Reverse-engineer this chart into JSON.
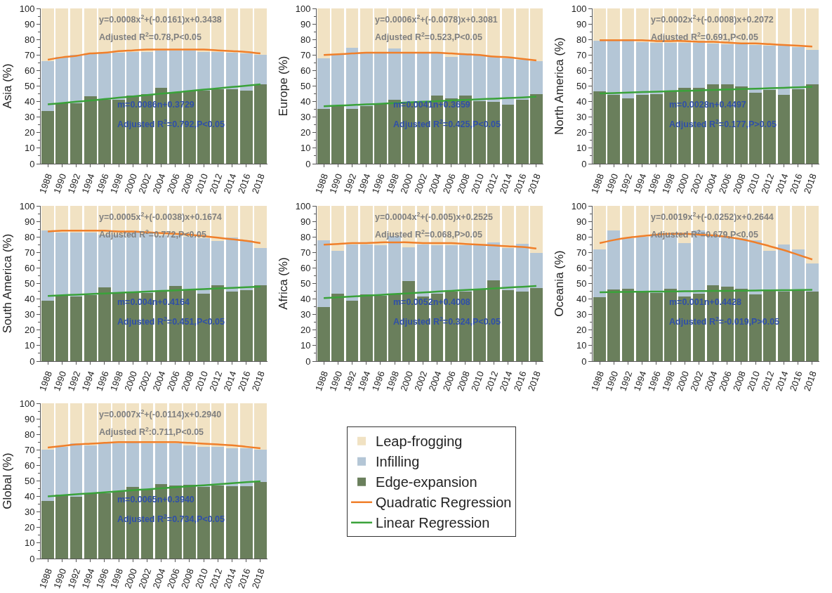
{
  "chart_data": [
    {
      "type": "bar",
      "stacked": true,
      "ylabel": "Asia (%)",
      "categories": [
        "1988",
        "1990",
        "1992",
        "1994",
        "1996",
        "1998",
        "2000",
        "2002",
        "2004",
        "2006",
        "2008",
        "2010",
        "2012",
        "2014",
        "2016",
        "2018"
      ],
      "ylim": [
        0,
        100
      ],
      "yticks": [
        0,
        10,
        20,
        30,
        40,
        50,
        60,
        70,
        80,
        90,
        100
      ],
      "grid": false,
      "legend": false,
      "annotations": [
        "y=0.0008x$^{2}$+(-0.0161)x+0.3438",
        "Adjusted R$^{2}$=0.78,P<0.05",
        "m=0.0086n+0.3729",
        "Adjusted R$^{2}$=0.792,P<0.05"
      ],
      "series": [
        {
          "color": "#6a7f5c",
          "values": [
            34,
            39,
            39,
            43.5,
            41,
            41,
            44,
            45,
            49,
            46,
            47,
            47,
            48,
            48,
            47,
            51
          ]
        },
        {
          "color": "#b4c6d6",
          "values": [
            32,
            30,
            31,
            27.5,
            30,
            30.5,
            28,
            27,
            24,
            27,
            26,
            25,
            24,
            23.5,
            24,
            19
          ]
        },
        {
          "color": "#f1e2c3",
          "values": [
            34,
            31,
            30,
            29,
            29,
            28.5,
            28,
            28,
            27,
            27,
            27,
            28,
            28,
            28.5,
            29,
            30
          ]
        },
        {
          "type": "line",
          "color": "#f07f2a",
          "values": [
            67,
            68.5,
            69.5,
            71,
            71.5,
            72.5,
            73,
            73.5,
            73.5,
            73.5,
            73.5,
            73.5,
            73,
            72.5,
            72,
            71
          ]
        },
        {
          "type": "line",
          "color": "#3aa23a",
          "values": [
            38.2,
            39,
            39.9,
            40.7,
            41.6,
            42.5,
            43.3,
            44.2,
            45.1,
            45.9,
            46.8,
            47.7,
            48.5,
            49.4,
            50.2,
            51.1
          ]
        }
      ]
    },
    {
      "type": "bar",
      "stacked": true,
      "ylabel": "Europe (%)",
      "categories": [
        "1988",
        "1990",
        "1992",
        "1994",
        "1996",
        "1998",
        "2000",
        "2002",
        "2004",
        "2006",
        "2008",
        "2010",
        "2012",
        "2014",
        "2016",
        "2018"
      ],
      "ylim": [
        0,
        100
      ],
      "yticks": [
        0,
        10,
        20,
        30,
        40,
        50,
        60,
        70,
        80,
        90,
        100
      ],
      "grid": false,
      "legend": false,
      "annotations": [
        "y=0.0006x$^{2}$+(-0.0078)x+0.3081",
        "Adjusted R$^{2}$=0.523,P<0.05",
        "m=0.0041n+0.3659",
        "Adjusted R$^{2}$=0.425,P<0.05"
      ],
      "series": [
        {
          "color": "#6a7f5c",
          "values": [
            35.5,
            37,
            35.5,
            37,
            39,
            41,
            40,
            40,
            44,
            42,
            44,
            40.5,
            40,
            38,
            41,
            45
          ]
        },
        {
          "color": "#b4c6d6",
          "values": [
            32.5,
            33,
            39,
            34,
            33,
            33,
            31,
            31,
            27,
            27,
            27,
            29.5,
            29,
            30,
            26,
            21
          ]
        },
        {
          "color": "#f1e2c3",
          "values": [
            32,
            30,
            25.5,
            29,
            28,
            26,
            29,
            29,
            29,
            31,
            29,
            30,
            31,
            32,
            33,
            34
          ]
        },
        {
          "type": "line",
          "color": "#f07f2a",
          "values": [
            70,
            70.5,
            71,
            71.5,
            71.5,
            71.5,
            71.5,
            71.5,
            71.5,
            71,
            70.5,
            70,
            69,
            68.5,
            67.5,
            66.5
          ]
        },
        {
          "type": "line",
          "color": "#3aa23a",
          "values": [
            37,
            37.4,
            37.8,
            38.2,
            38.6,
            39,
            39.5,
            39.9,
            40.3,
            40.7,
            41.1,
            41.5,
            41.9,
            42.3,
            42.7,
            43.2
          ]
        }
      ]
    },
    {
      "type": "bar",
      "stacked": true,
      "ylabel": "North America (%)",
      "categories": [
        "1988",
        "1990",
        "1992",
        "1994",
        "1996",
        "1998",
        "2000",
        "2002",
        "2004",
        "2006",
        "2008",
        "2010",
        "2012",
        "2014",
        "2016",
        "2018"
      ],
      "ylim": [
        0,
        100
      ],
      "yticks": [
        0,
        10,
        20,
        30,
        40,
        50,
        60,
        70,
        80,
        90,
        100
      ],
      "grid": false,
      "legend": false,
      "annotations": [
        "y=0.0002x$^{2}$+(-0.0008)x+0.2072",
        "Adjusted R$^{2}$=0.691,P<0.05",
        "m=0.0028n+0.4497",
        "Adjusted R$^{2}$=0.177,P>0.05"
      ],
      "series": [
        {
          "color": "#6a7f5c",
          "values": [
            46.5,
            44.5,
            42,
            44.5,
            45,
            47,
            49,
            49,
            51,
            51,
            50,
            45.5,
            47.5,
            44.5,
            48,
            51
          ]
        },
        {
          "color": "#b4c6d6",
          "values": [
            32.5,
            34.5,
            37,
            34,
            33,
            31,
            29,
            29,
            26.5,
            26,
            27,
            31,
            28.5,
            31.5,
            27,
            22.5
          ]
        },
        {
          "color": "#f1e2c3",
          "values": [
            21,
            21,
            21,
            21.5,
            22,
            22,
            22,
            22,
            22.5,
            23,
            23,
            23.5,
            24,
            24,
            25,
            26.5
          ]
        },
        {
          "type": "line",
          "color": "#f07f2a",
          "values": [
            79.5,
            79.5,
            79.5,
            79.5,
            79,
            79,
            79,
            78.5,
            78.5,
            78,
            77.5,
            77.5,
            77,
            76.5,
            76,
            75.5
          ]
        },
        {
          "type": "line",
          "color": "#3aa23a",
          "values": [
            45.3,
            45.5,
            45.8,
            46.1,
            46.4,
            46.7,
            46.9,
            47.2,
            47.5,
            47.8,
            48.1,
            48.3,
            48.6,
            48.9,
            49.2,
            49.5
          ]
        }
      ]
    },
    {
      "type": "bar",
      "stacked": true,
      "ylabel": "South America (%)",
      "categories": [
        "1988",
        "1990",
        "1992",
        "1994",
        "1996",
        "1998",
        "2000",
        "2002",
        "2004",
        "2006",
        "2008",
        "2010",
        "2012",
        "2014",
        "2016",
        "2018"
      ],
      "ylim": [
        0,
        100
      ],
      "yticks": [
        0,
        10,
        20,
        30,
        40,
        50,
        60,
        70,
        80,
        90,
        100
      ],
      "grid": false,
      "legend": false,
      "annotations": [
        "y=0.0005x$^{2}$+(-0.0038)x+0.1674",
        "Adjusted R$^{2}$=0.772,P<0.05",
        "m=0.004n+0.4164",
        "Adjusted R$^{2}$=0.451,P<0.05"
      ],
      "series": [
        {
          "color": "#6a7f5c",
          "values": [
            39,
            42,
            41.5,
            42.5,
            47.5,
            44.5,
            45,
            44,
            45,
            48.5,
            46,
            43.5,
            49,
            45,
            45.5,
            49
          ]
        },
        {
          "color": "#b4c6d6",
          "values": [
            45,
            41,
            41.5,
            40.5,
            34,
            37,
            38,
            38,
            36,
            32.5,
            34,
            35.5,
            28.5,
            34.5,
            32.5,
            24
          ]
        },
        {
          "color": "#f1e2c3",
          "values": [
            16,
            17,
            17,
            17,
            18.5,
            18.5,
            17,
            18,
            19,
            19,
            20,
            21,
            22.5,
            20.5,
            22,
            27
          ]
        },
        {
          "type": "line",
          "color": "#f07f2a",
          "values": [
            83.5,
            84,
            84,
            84,
            84,
            83.5,
            83.5,
            83,
            82.5,
            82,
            81.5,
            80.5,
            79.5,
            78.5,
            77.5,
            76
          ]
        },
        {
          "type": "line",
          "color": "#3aa23a",
          "values": [
            42,
            42.4,
            42.8,
            43.2,
            43.6,
            44,
            44.4,
            44.8,
            45.2,
            45.6,
            46,
            46.4,
            46.8,
            47.2,
            47.6,
            48
          ]
        }
      ]
    },
    {
      "type": "bar",
      "stacked": true,
      "ylabel": "Africa (%)",
      "categories": [
        "1988",
        "1990",
        "1992",
        "1994",
        "1996",
        "1998",
        "2000",
        "2002",
        "2004",
        "2006",
        "2008",
        "2010",
        "2012",
        "2014",
        "2016",
        "2018"
      ],
      "ylim": [
        0,
        100
      ],
      "yticks": [
        0,
        10,
        20,
        30,
        40,
        50,
        60,
        70,
        80,
        90,
        100
      ],
      "grid": false,
      "legend": false,
      "annotations": [
        "y=0.0004x$^{2}$+(-0.005)x+0.2525",
        "Adjusted R$^{2}$=0.068,P>0.05",
        "m=0.0052n+0.4008",
        "Adjusted R$^{2}$=0.324,P<0.05"
      ],
      "series": [
        {
          "color": "#6a7f5c",
          "values": [
            35,
            43.5,
            39,
            43,
            42,
            43,
            51.5,
            41.5,
            43.5,
            45,
            45,
            46,
            52,
            45.5,
            45,
            47
          ]
        },
        {
          "color": "#b4c6d6",
          "values": [
            43,
            27.5,
            36,
            32,
            32.5,
            37.5,
            22,
            33.5,
            31,
            29.5,
            29.5,
            29,
            24.5,
            27.5,
            30.5,
            22.5
          ]
        },
        {
          "color": "#f1e2c3",
          "values": [
            22,
            29,
            25,
            25,
            25.5,
            19.5,
            26.5,
            25,
            25.5,
            25.5,
            25.5,
            25,
            23.5,
            27,
            24.5,
            30.5
          ]
        },
        {
          "type": "line",
          "color": "#f07f2a",
          "values": [
            75,
            75.5,
            76,
            76,
            76.5,
            76.5,
            76.5,
            76,
            76,
            76,
            75.5,
            75,
            74.5,
            74,
            73.5,
            72.5
          ]
        },
        {
          "type": "line",
          "color": "#3aa23a",
          "values": [
            40.6,
            41.1,
            41.6,
            42.2,
            42.7,
            43.2,
            43.7,
            44.2,
            44.8,
            45.3,
            45.8,
            46.3,
            46.8,
            47.4,
            47.9,
            48.4
          ]
        }
      ]
    },
    {
      "type": "bar",
      "stacked": true,
      "ylabel": "Oceania (%)",
      "categories": [
        "1988",
        "1990",
        "1992",
        "1994",
        "1996",
        "1998",
        "2000",
        "2002",
        "2004",
        "2006",
        "2008",
        "2010",
        "2012",
        "2014",
        "2016",
        "2018"
      ],
      "ylim": [
        0,
        100
      ],
      "yticks": [
        0,
        10,
        20,
        30,
        40,
        50,
        60,
        70,
        80,
        90,
        100
      ],
      "grid": false,
      "legend": false,
      "annotations": [
        "y=0.0019x$^{2}$+(-0.0252)x+0.2644",
        "Adjusted R$^{2}$=0.679,P<0.05",
        "m=0.001n+0.4428",
        "Adjusted R$^{2}$=-0.019,P>0.05"
      ],
      "series": [
        {
          "color": "#6a7f5c",
          "values": [
            41,
            46,
            46.5,
            45,
            44,
            46.5,
            41.5,
            43.5,
            49,
            48,
            46.5,
            43,
            45.5,
            45,
            46,
            45
          ]
        },
        {
          "color": "#b4c6d6",
          "values": [
            31,
            38,
            32.5,
            35,
            37,
            34.5,
            34.5,
            40.5,
            32,
            32,
            32.5,
            35,
            25.5,
            30,
            26,
            18
          ]
        },
        {
          "color": "#f1e2c3",
          "values": [
            28,
            16,
            21,
            20,
            19,
            19,
            24,
            16,
            19,
            20,
            21,
            22,
            29,
            25,
            28,
            37
          ]
        },
        {
          "type": "line",
          "color": "#f07f2a",
          "values": [
            76,
            78,
            79.5,
            80.5,
            81.5,
            82,
            82,
            81.5,
            81,
            80,
            78.5,
            76.5,
            74,
            71.5,
            68.5,
            65.5
          ]
        },
        {
          "type": "line",
          "color": "#3aa23a",
          "values": [
            44.4,
            44.5,
            44.6,
            44.7,
            44.8,
            44.9,
            45,
            45.1,
            45.2,
            45.3,
            45.4,
            45.5,
            45.6,
            45.7,
            45.8,
            45.9
          ]
        }
      ]
    },
    {
      "type": "bar",
      "stacked": true,
      "ylabel": "Global (%)",
      "categories": [
        "1988",
        "1990",
        "1992",
        "1994",
        "1996",
        "1998",
        "2000",
        "2002",
        "2004",
        "2006",
        "2008",
        "2010",
        "2012",
        "2014",
        "2016",
        "2018"
      ],
      "ylim": [
        0,
        100
      ],
      "yticks": [
        0,
        10,
        20,
        30,
        40,
        50,
        60,
        70,
        80,
        90,
        100
      ],
      "grid": false,
      "legend": "right",
      "annotations": [
        "y=0.0007x$^{2}$+(-0.0114)x+0.2940",
        "Adjusted R$^{2}$:0.711,P<0.05",
        "m=0.0065n+0.3940",
        "Adjusted R$^{2}$=0.734,P<0.05"
      ],
      "series": [
        {
          "name": "Edge-expansion",
          "color": "#6a7f5c",
          "values": [
            37,
            41,
            40,
            42,
            42,
            43,
            46,
            45,
            48,
            47,
            47.5,
            46,
            47,
            46.5,
            46.5,
            49.5
          ]
        },
        {
          "name": "Infilling",
          "color": "#b4c6d6",
          "values": [
            33,
            31,
            34,
            31,
            32,
            31,
            29,
            29,
            26,
            27,
            25.5,
            26,
            25,
            24.5,
            24.5,
            20.5
          ]
        },
        {
          "name": "Leap-frogging",
          "color": "#f1e2c3",
          "values": [
            30,
            28,
            26,
            27,
            26,
            26,
            25,
            26,
            26,
            26,
            27,
            28,
            28,
            29,
            29,
            30
          ]
        },
        {
          "name": "Quadratic Regression",
          "type": "line",
          "color": "#f07f2a",
          "values": [
            71.5,
            72.5,
            73.5,
            74,
            74.5,
            75,
            75,
            75,
            75,
            75,
            74.5,
            74,
            73.5,
            73,
            72,
            71
          ]
        },
        {
          "name": "Linear Regression",
          "type": "line",
          "color": "#3aa23a",
          "values": [
            40.1,
            40.7,
            41.4,
            42,
            42.7,
            43.3,
            44,
            44.6,
            45.3,
            45.9,
            46.6,
            47.2,
            47.9,
            48.5,
            49.2,
            49.8
          ]
        }
      ]
    }
  ]
}
